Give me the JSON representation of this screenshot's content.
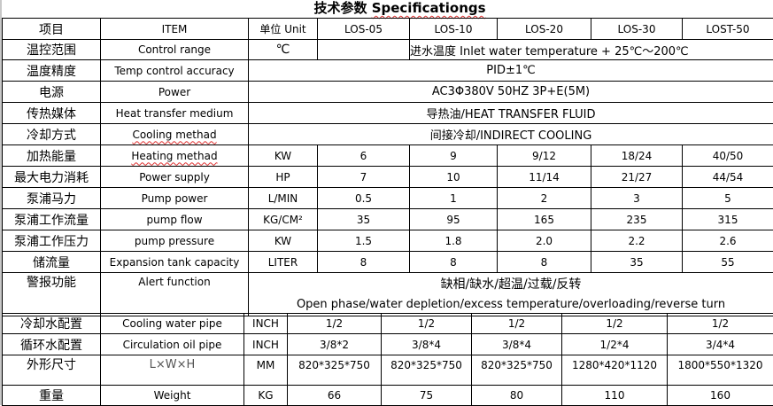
{
  "title": {
    "zh": "技术参数",
    "en": "Specificationgs"
  },
  "header": {
    "zh": "项目",
    "item": "ITEM",
    "unit": "单位 Unit",
    "models": [
      "LOS-05",
      "LOS-10",
      "LOS-20",
      "LOS-30",
      "LOST-50"
    ]
  },
  "merged_rows": [
    {
      "zh": "温控范围",
      "en": "Control range",
      "unit": "℃",
      "value": "进水温度 Inlet water temperature + 25℃～200℃"
    },
    {
      "zh": "温度精度",
      "en": "Temp control accuracy",
      "value": "PID±1℃"
    },
    {
      "zh": "电源",
      "en": "Power",
      "value": "AC3Φ380V 50HZ 3P+E(5M)"
    },
    {
      "zh": "传热媒体",
      "en": "Heat transfer medium",
      "value": "导热油/HEAT TRANSFER FLUID"
    },
    {
      "zh": "冷却方式",
      "en": "Cooling methad",
      "value": "间接冷却/INDIRECT COOLING"
    }
  ],
  "model_rows_top": [
    {
      "zh": "加热能量",
      "en": "Heating methad",
      "unit": "KW",
      "values": [
        "6",
        "9",
        "9/12",
        "18/24",
        "40/50"
      ]
    },
    {
      "zh": "最大电力消耗",
      "en": "Power supply",
      "unit": "HP",
      "values": [
        "7",
        "10",
        "11/14",
        "21/27",
        "44/54"
      ]
    },
    {
      "zh": "泵浦马力",
      "en": "Pump power",
      "unit": "L/MIN",
      "values": [
        "0.5",
        "1",
        "2",
        "3",
        "5"
      ]
    },
    {
      "zh": "泵浦工作流量",
      "en": "pump flow",
      "unit": "KG/CM²",
      "values": [
        "35",
        "95",
        "165",
        "235",
        "315"
      ]
    },
    {
      "zh": "泵浦工作压力",
      "en": "pump pressure",
      "unit": "KW",
      "values": [
        "1.5",
        "1.8",
        "2.0",
        "2.2",
        "2.6"
      ]
    },
    {
      "zh": "储流量",
      "en": "Expansion tank capacity",
      "unit": "LITER",
      "values": [
        "8",
        "8",
        "8",
        "35",
        "55"
      ]
    }
  ],
  "alert_row": {
    "zh": "警报功能",
    "en": "Alert function",
    "value_zh": "缺相/缺水/超温/过载/反转",
    "value_en": "Open phase/water depletion/excess temperature/overloading/reverse turn"
  },
  "model_rows_bottom": [
    {
      "zh": "冷却水配置",
      "en": "Cooling water pipe",
      "unit": "INCH",
      "values": [
        "1/2",
        "1/2",
        "1/2",
        "1/2",
        "1/2"
      ]
    },
    {
      "zh": "循环水配置",
      "en": "Circulation oil pipe",
      "unit": "INCH",
      "values": [
        "3/8*2",
        "3/8*4",
        "3/8*4",
        "1/2*4",
        "3/4*4"
      ]
    },
    {
      "zh": "外形尺寸",
      "en": "L×W×H",
      "unit": "MM",
      "values": [
        "820*325*750",
        "820*325*750",
        "820*325*750",
        "1280*420*1120",
        "1800*550*1320"
      ]
    },
    {
      "zh": "重量",
      "en": "Weight",
      "unit": "KG",
      "values": [
        "66",
        "75",
        "80",
        "110",
        "160"
      ]
    }
  ]
}
